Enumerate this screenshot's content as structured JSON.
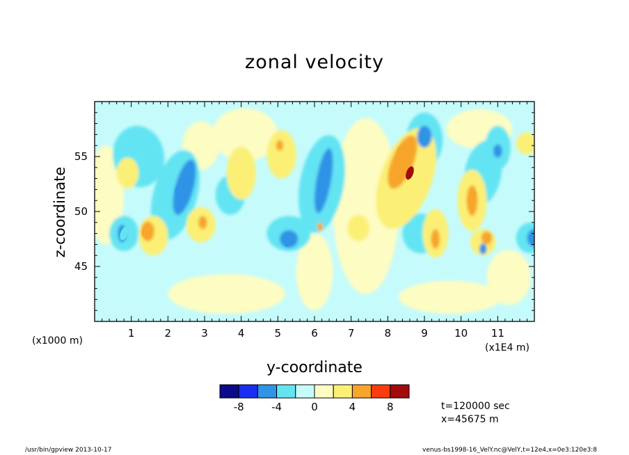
{
  "chart_data": {
    "type": "heatmap",
    "title": "zonal velocity",
    "xlabel": "y-coordinate",
    "ylabel": "z-coordinate",
    "x_unit_note": "(x1E4 m)",
    "y_unit_note": "(x1000 m)",
    "xlim": [
      0,
      12
    ],
    "ylim": [
      40,
      60
    ],
    "x_ticks": [
      "1",
      "2",
      "3",
      "4",
      "5",
      "6",
      "7",
      "8",
      "9",
      "10",
      "11"
    ],
    "y_ticks": [
      "45",
      "50",
      "55"
    ],
    "colorbar": {
      "levels": [
        -10,
        -8,
        -6,
        -4,
        -2,
        0,
        2,
        4,
        6,
        8,
        10
      ],
      "tick_labels": [
        "-8",
        "-4",
        "0",
        "4",
        "8"
      ],
      "colors": [
        "#0a0a8c",
        "#1a2df0",
        "#2f93e6",
        "#64e4f2",
        "#c6fbfb",
        "#fdfcc3",
        "#fbf075",
        "#f7a52b",
        "#fa3c0e",
        "#a30a0a"
      ]
    },
    "features": [
      {
        "y": 8.6,
        "z": 53.5,
        "value": 8
      },
      {
        "y": 8.35,
        "z": 55.5,
        "value": 5
      },
      {
        "y": 6.25,
        "z": 52.5,
        "value": -6
      },
      {
        "y": 2.3,
        "z": 52.0,
        "value": -5
      },
      {
        "y": 10.3,
        "z": 51.3,
        "value": 5
      },
      {
        "y": 1.4,
        "z": 48.3,
        "value": 4
      },
      {
        "y": 9.0,
        "z": 56.8,
        "value": -5
      },
      {
        "y": 12.0,
        "z": 47.6,
        "value": -6
      },
      {
        "y": 5.3,
        "z": 47.4,
        "value": -5
      },
      {
        "y": 0.8,
        "z": 48.0,
        "value": -4
      }
    ]
  },
  "annotations": {
    "time": "t=120000 sec",
    "xpos": "x=45675 m"
  },
  "footer": {
    "left": "/usr/bin/gpview  2013-10-17",
    "right": "venus-bs1998-16_VelY.nc@VelY,t=12e4,x=0e3:120e3:8"
  }
}
